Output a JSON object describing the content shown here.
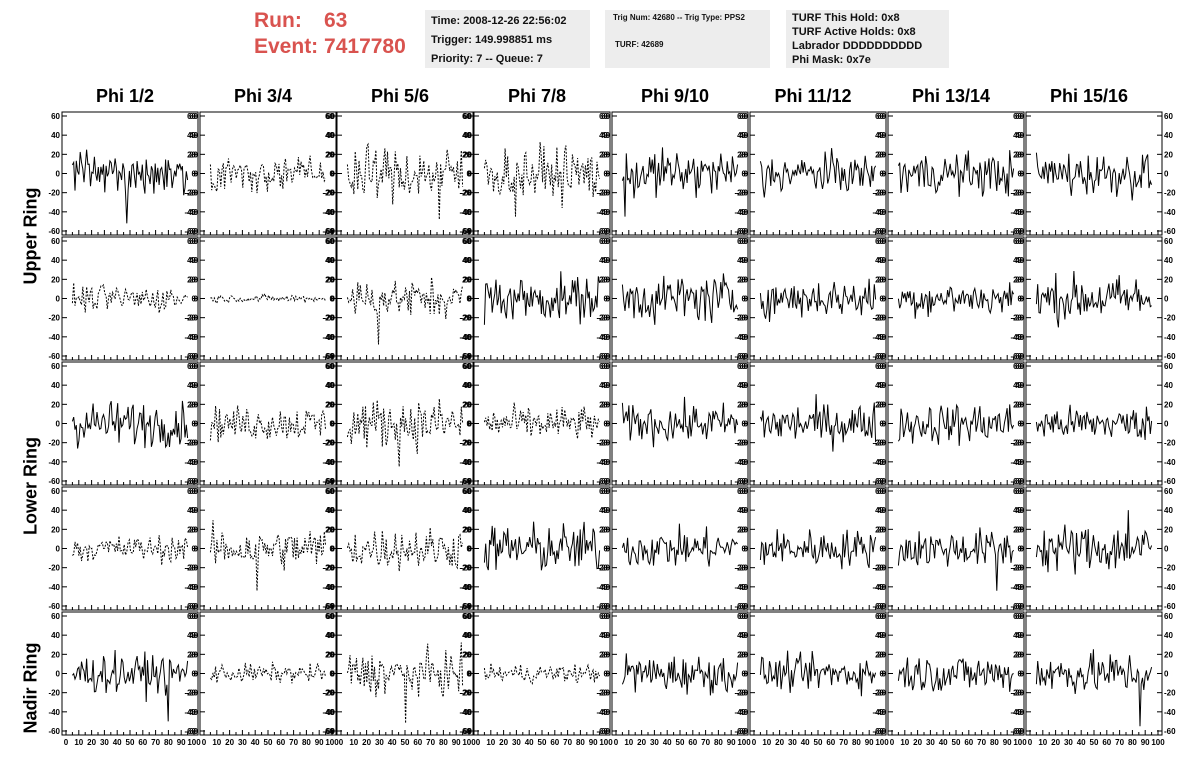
{
  "header": {
    "run_label": "Run:",
    "run_value": "63",
    "event_label": "Event:",
    "event_value": "7417780",
    "time_line": "Time: 2008-12-26 22:56:02",
    "trigger_line": "Trigger: 149.998851 ms",
    "priority_line": "Priority: 7 -- Queue: 7",
    "trig_num_line": "Trig Num: 42680 -- Trig Type: PPS2",
    "turf_line": "TURF: 42689",
    "turf_hold_line": "TURF This Hold: 0x8",
    "turf_active_line": "TURF Active Holds: 0x8",
    "labrador_line": "Labrador DDDDDDDDDD",
    "phi_mask_line": "Phi Mask: 0x7e"
  },
  "colors": {
    "run_text": "#d9534f",
    "info_bg": "#ededed",
    "trace": "#000000"
  },
  "chart_data": {
    "type": "line",
    "title": "",
    "columns": [
      "Phi 1/2",
      "Phi 3/4",
      "Phi 5/6",
      "Phi 7/8",
      "Phi 9/10",
      "Phi 11/12",
      "Phi 13/14",
      "Phi 15/16"
    ],
    "ring_labels": [
      "Upper Ring",
      "Lower Ring",
      "Nadir Ring"
    ],
    "rows": 5,
    "x_ticks": [
      "0",
      "10",
      "20",
      "30",
      "40",
      "50",
      "60",
      "70",
      "80",
      "90",
      "100"
    ],
    "y_ticks": [
      "60",
      "40",
      "20",
      "0",
      "-20",
      "-40",
      "-60"
    ],
    "xlim": [
      0,
      100
    ],
    "ylim": [
      -60,
      60
    ],
    "samples_per_trace": 90,
    "style_dashed_panels": [
      [
        0,
        1
      ],
      [
        0,
        2
      ],
      [
        0,
        3
      ],
      [
        1,
        0
      ],
      [
        1,
        1
      ],
      [
        1,
        2
      ],
      [
        2,
        1
      ],
      [
        2,
        2
      ],
      [
        2,
        3
      ],
      [
        3,
        0
      ],
      [
        3,
        1
      ],
      [
        3,
        2
      ],
      [
        4,
        1
      ],
      [
        4,
        2
      ],
      [
        4,
        3
      ]
    ],
    "amplitude_rms": [
      [
        10,
        9,
        14,
        14,
        12,
        10,
        11,
        12
      ],
      [
        7,
        2,
        10,
        12,
        13,
        10,
        9,
        12
      ],
      [
        12,
        9,
        13,
        9,
        10,
        11,
        11,
        9
      ],
      [
        7,
        11,
        11,
        13,
        10,
        10,
        10,
        13
      ],
      [
        10,
        5,
        11,
        5,
        10,
        9,
        10,
        11
      ]
    ],
    "peak_excursions": [
      [
        {
          "x": 47,
          "y": -52
        }
      ],
      [],
      [
        {
          "x": 80,
          "y": -48
        }
      ],
      [
        {
          "x": 27,
          "y": -45
        }
      ],
      [
        {
          "x": 2,
          "y": -45
        }
      ],
      [
        {
          "x": 3,
          "y": -25
        }
      ],
      [],
      [],
      [],
      [],
      [
        {
          "x": 27,
          "y": -48
        }
      ],
      [],
      [],
      [],
      [],
      [],
      [],
      [],
      [
        {
          "x": 45,
          "y": -45
        }
      ],
      [],
      [],
      [],
      [],
      [],
      [],
      [
        {
          "x": 40,
          "y": -44
        }
      ],
      [],
      [],
      [],
      [],
      [
        {
          "x": 85,
          "y": -44
        }
      ],
      [
        {
          "x": 80,
          "y": 40
        }
      ],
      [
        {
          "x": 83,
          "y": -50
        }
      ],
      [],
      [
        {
          "x": 50,
          "y": -52
        }
      ],
      [],
      [],
      [],
      [],
      [
        {
          "x": 90,
          "y": -55
        }
      ]
    ]
  }
}
